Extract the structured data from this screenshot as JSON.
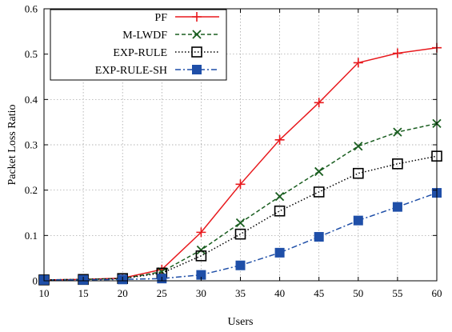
{
  "chart_data": {
    "type": "line",
    "title": "",
    "xlabel": "Users",
    "ylabel": "Packet Loss Ratio",
    "xlim": [
      10,
      60
    ],
    "ylim": [
      0,
      0.6
    ],
    "x_ticks": [
      "10",
      "15",
      "20",
      "25",
      "30",
      "35",
      "40",
      "45",
      "50",
      "55",
      "60"
    ],
    "y_ticks": [
      "0",
      "0.1",
      "0.2",
      "0.3",
      "0.4",
      "0.5",
      "0.6"
    ],
    "grid": true,
    "legend_position": "top-left",
    "x": [
      10,
      15,
      20,
      25,
      30,
      35,
      40,
      45,
      50,
      55,
      60
    ],
    "series": [
      {
        "name": "PF",
        "color": "#e8191d",
        "marker": "plus",
        "dash": "solid",
        "values": [
          0.002,
          0.003,
          0.006,
          0.025,
          0.107,
          0.213,
          0.311,
          0.393,
          0.481,
          0.502,
          0.514
        ]
      },
      {
        "name": "M-LWDF",
        "color": "#1a5e20",
        "marker": "cross",
        "dash": "dashed",
        "values": [
          0.002,
          0.003,
          0.005,
          0.02,
          0.068,
          0.128,
          0.186,
          0.241,
          0.297,
          0.328,
          0.347
        ]
      },
      {
        "name": "EXP-RULE",
        "color": "#000000",
        "marker": "open-square",
        "dash": "dotted",
        "values": [
          0.002,
          0.003,
          0.005,
          0.017,
          0.055,
          0.103,
          0.154,
          0.196,
          0.237,
          0.258,
          0.275
        ]
      },
      {
        "name": "EXP-RULE-SH",
        "color": "#1f4fa8",
        "marker": "filled-square",
        "dash": "dashdot",
        "values": [
          0.002,
          0.002,
          0.003,
          0.005,
          0.013,
          0.034,
          0.062,
          0.097,
          0.133,
          0.163,
          0.194
        ]
      }
    ]
  }
}
